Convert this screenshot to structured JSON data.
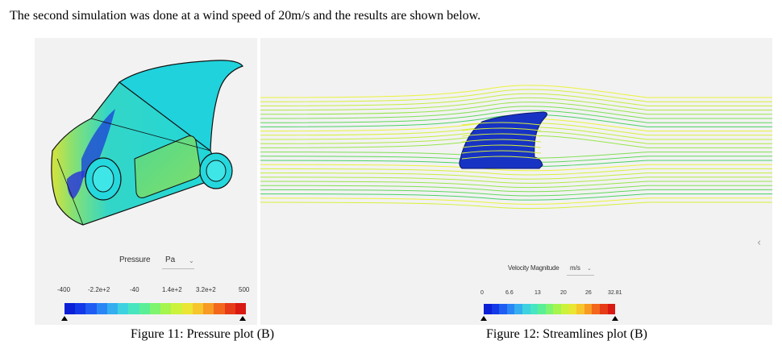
{
  "document": {
    "intro_text": "The second simulation was done at a wind speed of 20m/s and the results are shown below."
  },
  "figure11": {
    "caption": "Figure 11: Pressure plot (B)",
    "legend": {
      "title": "Pressure",
      "unit": "Pa",
      "ticks": [
        "-400",
        "-2.2e+2",
        "-40",
        "1.4e+2",
        "3.2e+2",
        "500"
      ]
    }
  },
  "figure12": {
    "caption": "Figure 12: Streamlines plot (B)",
    "legend": {
      "title": "Velocity Magnitude",
      "unit": "m/s",
      "ticks": [
        "0",
        "6.6",
        "13",
        "20",
        "26",
        "32.81"
      ]
    },
    "collapse_glyph": "‹"
  },
  "colormap": [
    "#0a1fd6",
    "#1238e8",
    "#1f5cf2",
    "#2a86f5",
    "#35aef0",
    "#3ed2e0",
    "#48e6c0",
    "#5aef97",
    "#7ff46e",
    "#a6f54e",
    "#ccf23c",
    "#ebe534",
    "#f7c52c",
    "#f79b24",
    "#f2671c",
    "#e63b16",
    "#d81a12"
  ]
}
